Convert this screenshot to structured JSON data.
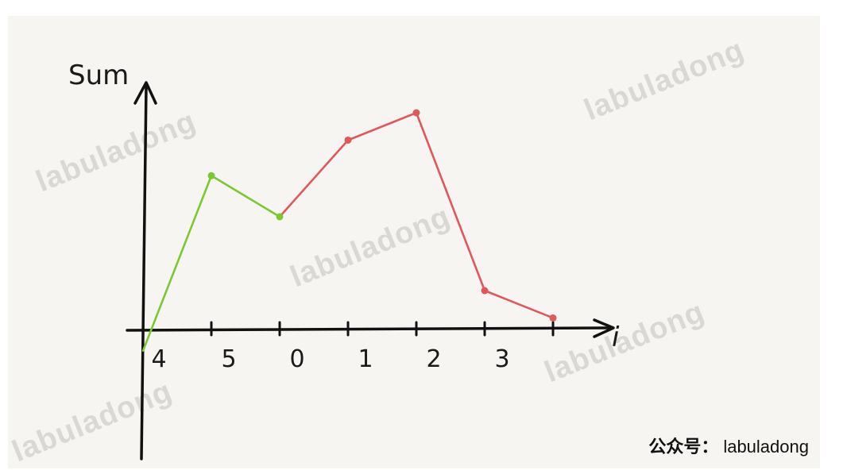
{
  "chart_data": {
    "type": "line",
    "ylabel": "Sum",
    "xlabel": "i",
    "categories": [
      "4",
      "5",
      "0",
      "1",
      "2",
      "3",
      ""
    ],
    "values": [
      0,
      64,
      49,
      77,
      87,
      22,
      12
    ],
    "ylim": [
      -43,
      105
    ],
    "segments": [
      {
        "from": 0,
        "to": 2,
        "color": "#7cc832"
      },
      {
        "from": 2,
        "to": 6,
        "color": "#e0585a"
      }
    ],
    "grid": false,
    "legend": "none"
  },
  "watermarks": [
    "labuladong",
    "labuladong",
    "labuladong",
    "labuladong",
    "labuladong"
  ],
  "credit": {
    "prefix": "公众号：",
    "name": "labuladong"
  }
}
